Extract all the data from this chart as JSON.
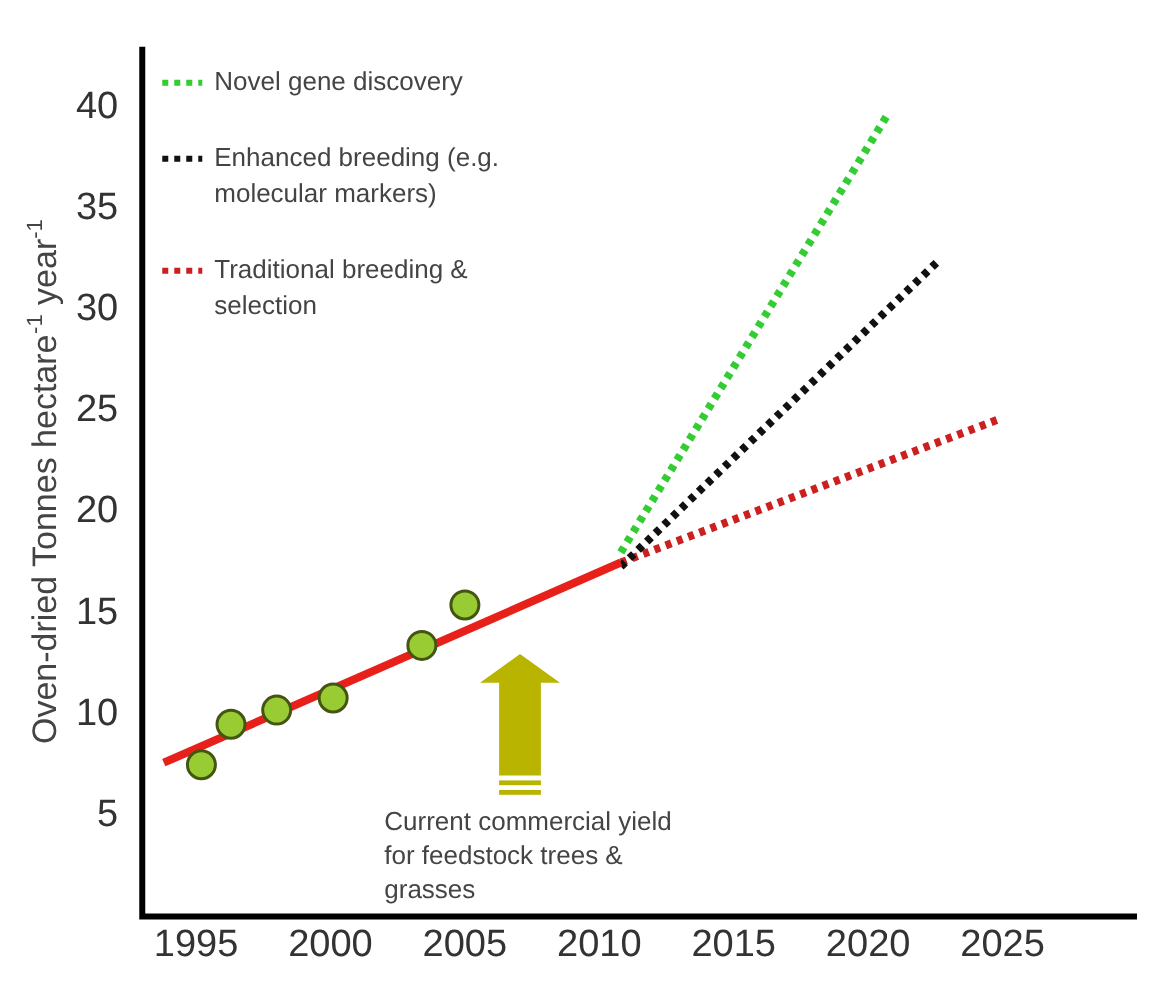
{
  "chart_data": {
    "type": "line",
    "ylabel": "Oven-dried Tonnes hectare$^{-1}$ year$^{-1}$",
    "xlim": [
      1993,
      2030
    ],
    "ylim": [
      0,
      43
    ],
    "xticks": [
      1995,
      2000,
      2005,
      2010,
      2015,
      2020,
      2025
    ],
    "yticks": [
      5,
      10,
      15,
      20,
      25,
      30,
      35,
      40
    ],
    "grid": false,
    "legend": "top left",
    "series": [
      {
        "type": "scatter",
        "marker": "circle",
        "color": "#99cc33",
        "x": [
          1995.2,
          1996.3,
          1998.0,
          2000.1,
          2003.4,
          2005.0
        ],
        "values": [
          7.5,
          9.5,
          10.2,
          10.8,
          13.4,
          15.4
        ]
      },
      {
        "line_style": "solid",
        "color": "#e8201a",
        "x": [
          1993.8,
          2010.8
        ],
        "values": [
          7.6,
          17.5
        ]
      },
      {
        "line_style": "dotted",
        "name": "Novel gene discovery",
        "color": "#33cc33",
        "x": [
          2010.8,
          2020.7
        ],
        "values": [
          18.0,
          39.6
        ]
      },
      {
        "line_style": "dotted",
        "name": "Enhanced breeding (e.g. molecular markers)",
        "color": "#111111",
        "x": [
          2010.8,
          2022.6
        ],
        "values": [
          17.3,
          32.4
        ]
      },
      {
        "line_style": "dotted",
        "name": "Traditional breeding & selection",
        "color": "#cc2020",
        "x": [
          2010.8,
          2024.9
        ],
        "values": [
          17.5,
          24.6
        ]
      }
    ],
    "annotations": [
      "Current commercial yield for feedstock trees & grasses"
    ]
  }
}
